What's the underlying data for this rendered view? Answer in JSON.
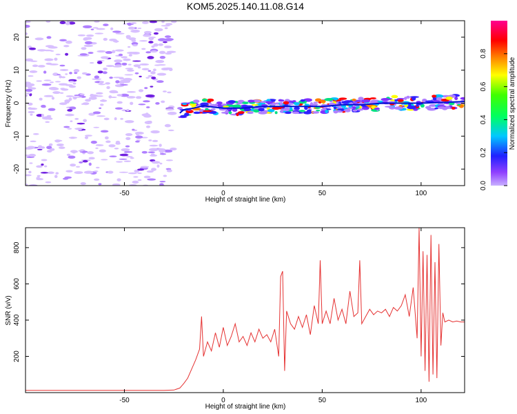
{
  "figure": {
    "title": "KOM5.2025.140.11.08.G14"
  },
  "colors": {
    "snr_line": "#e53030",
    "ridge": "#0010d0"
  },
  "chart_data": [
    {
      "type": "heatmap",
      "xlabel": "Height of straight line (km)",
      "ylabel": "Frequency (Hz)",
      "xlim": [
        -100,
        122
      ],
      "ylim": [
        -25,
        25
      ],
      "xticks": [
        -50,
        0,
        50,
        100
      ],
      "yticks": [
        -20,
        -10,
        0,
        10,
        20
      ],
      "colorbar": {
        "label": "Normalized spectral amplitude",
        "range": [
          0,
          1
        ],
        "ticks": [
          0.0,
          0.2,
          0.4,
          0.6,
          0.8
        ],
        "colormap": "rainbow (violet → blue → cyan → green → yellow → red → magenta)"
      },
      "ridge": {
        "x": [
          -22,
          -20,
          -15,
          -10,
          -5,
          0,
          10,
          20,
          30,
          40,
          50,
          60,
          70,
          80,
          90,
          100,
          110,
          122
        ],
        "y": [
          -3,
          -2,
          -1.5,
          -0.8,
          -1.2,
          -1.5,
          -1.5,
          -1,
          -1,
          -1,
          -1,
          -0.5,
          -0.5,
          0,
          0,
          0,
          0.2,
          0.5
        ]
      },
      "noise_region": [
        -100,
        -25
      ],
      "grid": false
    },
    {
      "type": "line",
      "xlabel": "Height of straight line (km)",
      "ylabel": "SNR (v/v)",
      "xlim": [
        -100,
        122
      ],
      "ylim": [
        0,
        910
      ],
      "xticks": [
        -50,
        0,
        50,
        100
      ],
      "yticks": [
        200,
        400,
        600,
        800
      ],
      "series": [
        {
          "x": [
            -100,
            -90,
            -80,
            -70,
            -60,
            -50,
            -40,
            -30,
            -25,
            -22,
            -20,
            -18,
            -16,
            -14,
            -12,
            -11,
            -10,
            -8,
            -6,
            -4,
            -2,
            0,
            2,
            4,
            6,
            8,
            10,
            12,
            14,
            16,
            18,
            20,
            22,
            24,
            26,
            28,
            29,
            30,
            31,
            32,
            34,
            36,
            38,
            40,
            42,
            44,
            46,
            48,
            49,
            50,
            52,
            54,
            56,
            58,
            60,
            62,
            64,
            66,
            68,
            69,
            70,
            72,
            74,
            76,
            78,
            80,
            82,
            84,
            86,
            88,
            90,
            92,
            94,
            96,
            98,
            99,
            100,
            101,
            102,
            103,
            104,
            105,
            106,
            107,
            108,
            109,
            110,
            111,
            112,
            114,
            116,
            118,
            120,
            122
          ],
          "y": [
            12,
            12,
            12,
            12,
            12,
            12,
            12,
            12,
            14,
            25,
            50,
            80,
            130,
            180,
            240,
            420,
            200,
            280,
            230,
            330,
            250,
            360,
            260,
            310,
            380,
            280,
            310,
            260,
            330,
            280,
            350,
            300,
            320,
            280,
            350,
            200,
            640,
            670,
            120,
            450,
            380,
            350,
            420,
            360,
            430,
            320,
            480,
            380,
            730,
            380,
            450,
            380,
            520,
            400,
            460,
            380,
            560,
            420,
            440,
            730,
            380,
            420,
            460,
            430,
            450,
            440,
            460,
            420,
            470,
            450,
            480,
            540,
            420,
            580,
            300,
            910,
            200,
            780,
            120,
            760,
            60,
            870,
            100,
            720,
            80,
            820,
            260,
            440,
            390,
            400,
            390,
            395,
            390,
            390
          ]
        }
      ],
      "grid": false
    }
  ]
}
